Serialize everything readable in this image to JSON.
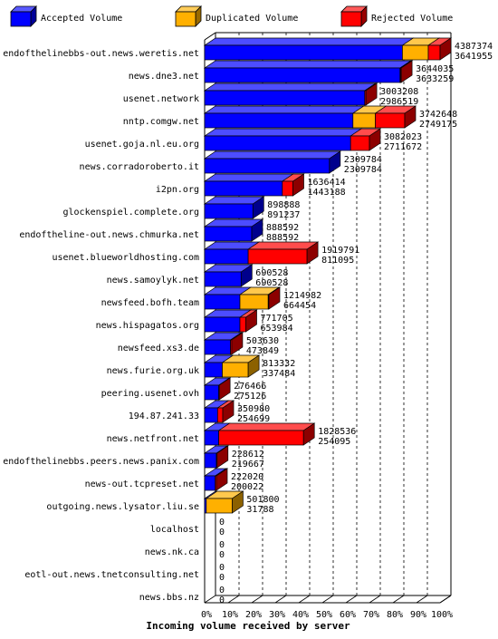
{
  "chart_data": {
    "type": "bar",
    "orientation": "horizontal",
    "stacked": true,
    "xlabel": "Incoming volume received by server",
    "xlim": [
      0,
      100
    ],
    "x_ticks": [
      "0%",
      "10%",
      "20%",
      "30%",
      "40%",
      "50%",
      "60%",
      "70%",
      "80%",
      "90%",
      "100%"
    ],
    "grid": true,
    "legend_position": "top",
    "series": [
      {
        "name": "Accepted Volume",
        "color": "#0000ff"
      },
      {
        "name": "Duplicated Volume",
        "color": "#ffb000"
      },
      {
        "name": "Rejected Volume",
        "color": "#ff0000"
      }
    ],
    "categories": [
      "endofthelinebbs-out.news.weretis.net",
      "news.dne3.net",
      "usenet.network",
      "nntp.comgw.net",
      "usenet.goja.nl.eu.org",
      "news.corradoroberto.it",
      "i2pn.org",
      "glockenspiel.complete.org",
      "endoftheline-out.news.chmurka.net",
      "usenet.blueworldhosting.com",
      "news.samoylyk.net",
      "newsfeed.bofh.team",
      "news.hispagatos.org",
      "newsfeed.xs3.de",
      "news.furie.org.uk",
      "peering.usenet.ovh",
      "194.87.241.33",
      "news.netfront.net",
      "endofthelinebbs.peers.news.panix.com",
      "news-out.tcpreset.net",
      "outgoing.news.lysator.liu.se",
      "localhost",
      "news.nk.ca",
      "eotl-out.news.tnetconsulting.net",
      "news.bbs.nz"
    ],
    "bars": [
      {
        "accepted": 84.0,
        "duplicated": 11.0,
        "rejected": 5.0,
        "total_label": "4387374",
        "accepted_label": "3641955"
      },
      {
        "accepted": 83.0,
        "duplicated": 0.2,
        "rejected": 0.3,
        "total_label": "3644035",
        "accepted_label": "3633259"
      },
      {
        "accepted": 68.0,
        "duplicated": 0.0,
        "rejected": 0.5,
        "total_label": "3003208",
        "accepted_label": "2986519"
      },
      {
        "accepted": 63.0,
        "duplicated": 9.5,
        "rejected": 12.5,
        "total_label": "3742648",
        "accepted_label": "2749175"
      },
      {
        "accepted": 62.0,
        "duplicated": 0.0,
        "rejected": 8.0,
        "total_label": "3082023",
        "accepted_label": "2711672"
      },
      {
        "accepted": 53.0,
        "duplicated": 0.0,
        "rejected": 0.0,
        "total_label": "2309784",
        "accepted_label": "2309784"
      },
      {
        "accepted": 33.0,
        "duplicated": 0.0,
        "rejected": 4.5,
        "total_label": "1636414",
        "accepted_label": "1443188"
      },
      {
        "accepted": 20.5,
        "duplicated": 0.0,
        "rejected": 0.0,
        "total_label": "898888",
        "accepted_label": "891237"
      },
      {
        "accepted": 20.0,
        "duplicated": 0.0,
        "rejected": 0.0,
        "total_label": "888592",
        "accepted_label": "888592"
      },
      {
        "accepted": 18.5,
        "duplicated": 0.0,
        "rejected": 25.0,
        "total_label": "1919791",
        "accepted_label": "811095"
      },
      {
        "accepted": 15.5,
        "duplicated": 0.0,
        "rejected": 0.0,
        "total_label": "690528",
        "accepted_label": "690528"
      },
      {
        "accepted": 15.0,
        "duplicated": 12.0,
        "rejected": 0.3,
        "total_label": "1214982",
        "accepted_label": "664454"
      },
      {
        "accepted": 15.0,
        "duplicated": 0.0,
        "rejected": 2.5,
        "total_label": "771705",
        "accepted_label": "653984"
      },
      {
        "accepted": 11.0,
        "duplicated": 0.0,
        "rejected": 0.5,
        "total_label": "503630",
        "accepted_label": "473849"
      },
      {
        "accepted": 7.5,
        "duplicated": 11.0,
        "rejected": 0.0,
        "total_label": "813332",
        "accepted_label": "337484"
      },
      {
        "accepted": 6.0,
        "duplicated": 0.0,
        "rejected": 0.2,
        "total_label": "276466",
        "accepted_label": "275126"
      },
      {
        "accepted": 5.5,
        "duplicated": 0.0,
        "rejected": 2.2,
        "total_label": "350980",
        "accepted_label": "254699"
      },
      {
        "accepted": 6.0,
        "duplicated": 0.0,
        "rejected": 36.0,
        "total_label": "1828536",
        "accepted_label": "254095"
      },
      {
        "accepted": 5.0,
        "duplicated": 0.0,
        "rejected": 0.3,
        "total_label": "228612",
        "accepted_label": "219667"
      },
      {
        "accepted": 4.5,
        "duplicated": 0.0,
        "rejected": 0.5,
        "total_label": "222020",
        "accepted_label": "200022"
      },
      {
        "accepted": 0.7,
        "duplicated": 11.0,
        "rejected": 0.0,
        "total_label": "501800",
        "accepted_label": "31788"
      },
      {
        "accepted": 0,
        "duplicated": 0,
        "rejected": 0,
        "total_label": "0",
        "accepted_label": "0"
      },
      {
        "accepted": 0,
        "duplicated": 0,
        "rejected": 0,
        "total_label": "0",
        "accepted_label": "0"
      },
      {
        "accepted": 0,
        "duplicated": 0,
        "rejected": 0,
        "total_label": "0",
        "accepted_label": "0"
      },
      {
        "accepted": 0,
        "duplicated": 0,
        "rejected": 0,
        "total_label": "0",
        "accepted_label": "0"
      }
    ]
  }
}
